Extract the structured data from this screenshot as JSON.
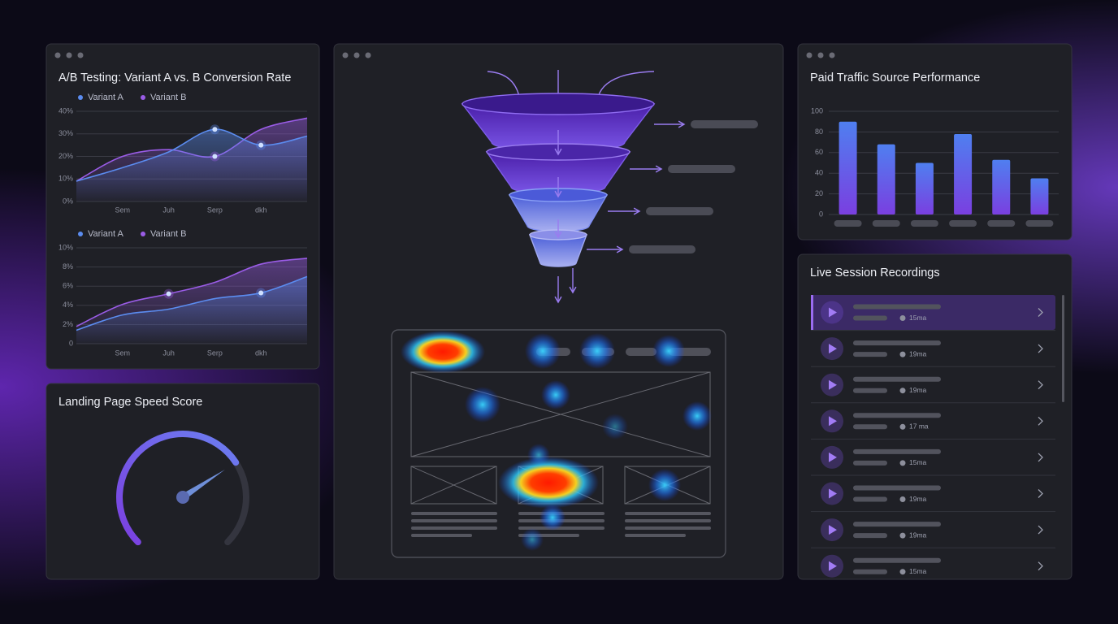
{
  "chart_data": [
    {
      "type": "line",
      "title": "A/B Testing: Variant A vs. B Conversion Rate",
      "categories": [
        null,
        "Sem",
        "Juh",
        "Serp",
        "dkh",
        null
      ],
      "series": [
        {
          "name": "Variant A",
          "color": "#5b8cf0",
          "values": [
            9,
            15,
            22,
            32,
            25,
            29
          ]
        },
        {
          "name": "Variant B",
          "color": "#9a5ce6",
          "values": [
            9,
            20,
            23,
            20,
            32,
            37
          ]
        }
      ],
      "ylim": [
        0,
        40
      ],
      "yticks": [
        {
          "value": 0,
          "label": "0%"
        },
        {
          "value": 10,
          "label": "10%"
        },
        {
          "value": 20,
          "label": "20%"
        },
        {
          "value": 30,
          "label": "30%"
        },
        {
          "value": 40,
          "label": "40%"
        }
      ],
      "grid": true
    },
    {
      "type": "line",
      "categories": [
        null,
        "Sem",
        "Juh",
        "Serp",
        "dkh",
        null
      ],
      "series": [
        {
          "name": "Variant A",
          "color": "#5b8cf0",
          "values": [
            1.4,
            3,
            3.6,
            4.7,
            5.3,
            7
          ]
        },
        {
          "name": "Variant B",
          "color": "#9a5ce6",
          "values": [
            1.8,
            4.1,
            5.2,
            6.4,
            8.3,
            8.9
          ]
        }
      ],
      "ylim": [
        0,
        10
      ],
      "yticks": [
        0,
        {
          "value": 2,
          "label": "2%"
        },
        {
          "value": 4,
          "label": "4%"
        },
        {
          "value": 6,
          "label": "6%"
        },
        {
          "value": 8,
          "label": "8%"
        },
        {
          "value": 10,
          "label": "10%"
        }
      ],
      "grid": true
    },
    {
      "type": "bar",
      "title": "Paid Traffic Source Performance",
      "categories": [
        null,
        null,
        null,
        null,
        null,
        null
      ],
      "values": [
        90,
        68,
        50,
        78,
        53,
        35
      ],
      "color": "#4f7ff0",
      "ylim": [
        0,
        100
      ],
      "yticks": [
        0,
        20,
        40,
        60,
        80,
        100
      ],
      "grid": true
    },
    {
      "type": "gauge",
      "title": "Landing Page Speed Score",
      "value": 71,
      "ylim": [
        0,
        100
      ],
      "color": "#6b7ff0"
    }
  ],
  "sessions": {
    "title": "Live Session Recordings",
    "rows": [
      {
        "duration": "15ma"
      },
      {
        "duration": "19ma"
      },
      {
        "duration": "19ma"
      },
      {
        "duration": "17 ma"
      },
      {
        "duration": "15ma"
      },
      {
        "duration": "19ma"
      },
      {
        "duration": "19ma"
      },
      {
        "duration": "15ma"
      }
    ]
  }
}
